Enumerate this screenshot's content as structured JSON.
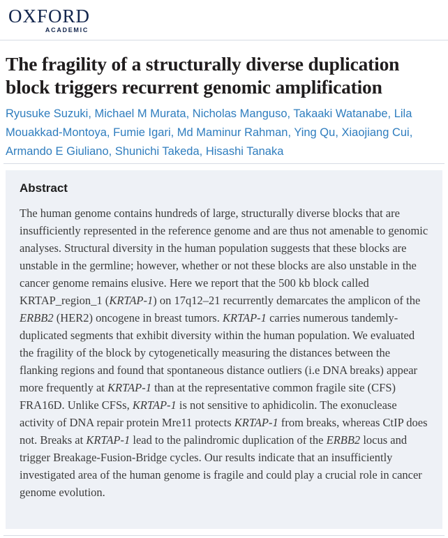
{
  "header": {
    "logo_line1": "OXFORD",
    "logo_line2": "ACADEMIC"
  },
  "article": {
    "title": "The fragility of a structurally diverse duplication block triggers recurrent genomic amplification",
    "authors": [
      "Ryusuke Suzuki",
      "Michael M Murata",
      "Nicholas Manguso",
      "Takaaki Watanabe",
      "Lila Mouakkad-Montoya",
      "Fumie Igari",
      "Md Maminur Rahman",
      "Ying Qu",
      "Xiaojiang Cui",
      "Armando E Giuliano",
      "Shunichi Takeda",
      "Hisashi Tanaka"
    ],
    "author_separator": ", "
  },
  "abstract": {
    "heading": "Abstract",
    "segments": [
      {
        "t": "The human genome contains hundreds of large, structurally diverse blocks that are insufficiently represented in the reference genome and are thus not amenable to genomic analyses. Structural diversity in the human population suggests that these blocks are unstable in the germline; however, whether or not these blocks are also unstable in the cancer genome remains elusive. Here we report that the 500 kb block called KRTAP_region_1 (",
        "i": false
      },
      {
        "t": "KRTAP-1",
        "i": true
      },
      {
        "t": ") on 17q12–21 recurrently demarcates the amplicon of the ",
        "i": false
      },
      {
        "t": "ERBB2",
        "i": true
      },
      {
        "t": " (HER2) oncogene in breast tumors. ",
        "i": false
      },
      {
        "t": "KRTAP-1",
        "i": true
      },
      {
        "t": " carries numerous tandemly-duplicated segments that exhibit diversity within the human population. We evaluated the fragility of the block by cytogenetically measuring the distances between the flanking regions and found that spontaneous distance outliers (i.e DNA breaks) appear more frequently at ",
        "i": false
      },
      {
        "t": "KRTAP-1",
        "i": true
      },
      {
        "t": " than at the representative common fragile site (CFS) FRA16D. Unlike CFSs, ",
        "i": false
      },
      {
        "t": "KRTAP-1",
        "i": true
      },
      {
        "t": " is not sensitive to aphidicolin. The exonuclease activity of DNA repair protein Mre11 protects ",
        "i": false
      },
      {
        "t": "KRTAP-1",
        "i": true
      },
      {
        "t": " from breaks, whereas CtIP does not. Breaks at ",
        "i": false
      },
      {
        "t": "KRTAP-1",
        "i": true
      },
      {
        "t": " lead to the palindromic duplication of the ",
        "i": false
      },
      {
        "t": "ERBB2",
        "i": true
      },
      {
        "t": " locus and trigger Breakage-Fusion-Bridge cycles. Our results indicate that an insufficiently investigated area of the human genome is fragile and could play a crucial role in cancer genome evolution.",
        "i": false
      }
    ]
  },
  "colors": {
    "navy": "#13264d",
    "link": "#2f7dbe",
    "title": "#201d1e",
    "body": "#3b3b3b",
    "abs_bg": "#eef1f6",
    "divider": "#d6dbe4"
  }
}
